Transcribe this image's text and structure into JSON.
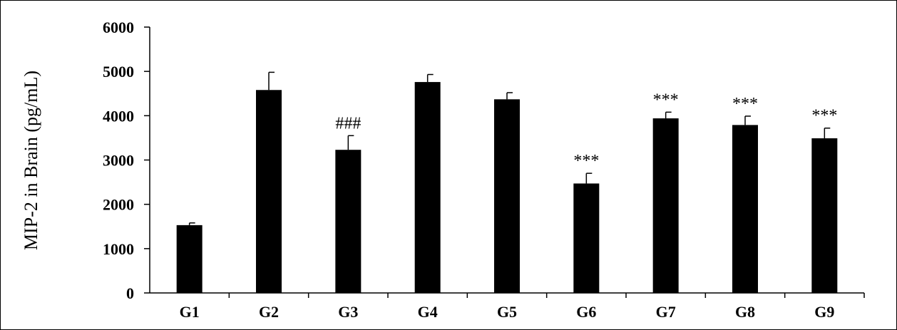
{
  "chart_data": {
    "type": "bar",
    "categories": [
      "G1",
      "G2",
      "G3",
      "G4",
      "G5",
      "G6",
      "G7",
      "G8",
      "G9"
    ],
    "values": [
      1530,
      4580,
      3230,
      4760,
      4370,
      2470,
      3940,
      3790,
      3490
    ],
    "error": [
      50,
      400,
      320,
      170,
      150,
      230,
      140,
      200,
      230
    ],
    "annotations": [
      "",
      "",
      "###",
      "",
      "",
      "***",
      "***",
      "***",
      "***"
    ],
    "ylabel": "MIP-2 in Brain (pg/mL)",
    "ylim": [
      0,
      6000
    ],
    "yticks": [
      0,
      1000,
      2000,
      3000,
      4000,
      5000,
      6000
    ],
    "colors": {
      "bar": "#000000",
      "axis": "#000000"
    },
    "grid": false
  }
}
